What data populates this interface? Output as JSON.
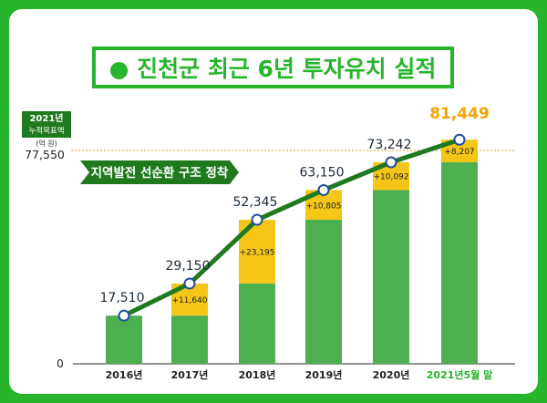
{
  "title": "● 진천군 최근 6년 투자유치 실적",
  "target_label_line1": "2021년",
  "target_label_line2": "누적목표액",
  "unit_label": "(억 원)",
  "target_value_label": "77,550",
  "zero_label": "0",
  "ribbon_text": "지역발전 선순환 구조 정착",
  "colors": {
    "frame": "#27b52c",
    "bar": "#4caf50",
    "increment": "#f5c518",
    "line": "#1f7a1f",
    "target_line": "#e69a1a",
    "highlight": "#f5a400"
  },
  "chart_data": {
    "type": "bar",
    "categories": [
      "2016년",
      "2017년",
      "2018년",
      "2019년",
      "2020년",
      "2021년5월 말"
    ],
    "totals": [
      17510,
      29150,
      52345,
      63150,
      73242,
      81449
    ],
    "total_labels": [
      "17,510",
      "29,150",
      "52,345",
      "63,150",
      "73,242",
      "81,449"
    ],
    "increments": [
      0,
      11640,
      23195,
      10805,
      10092,
      8207
    ],
    "increment_labels": [
      "",
      "+11,640",
      "+23,195",
      "+10,805",
      "+10,092",
      "+8,207"
    ],
    "target": 77550,
    "ylim": [
      0,
      90000
    ],
    "line": "cumulative totals connected by a line with circle markers"
  }
}
